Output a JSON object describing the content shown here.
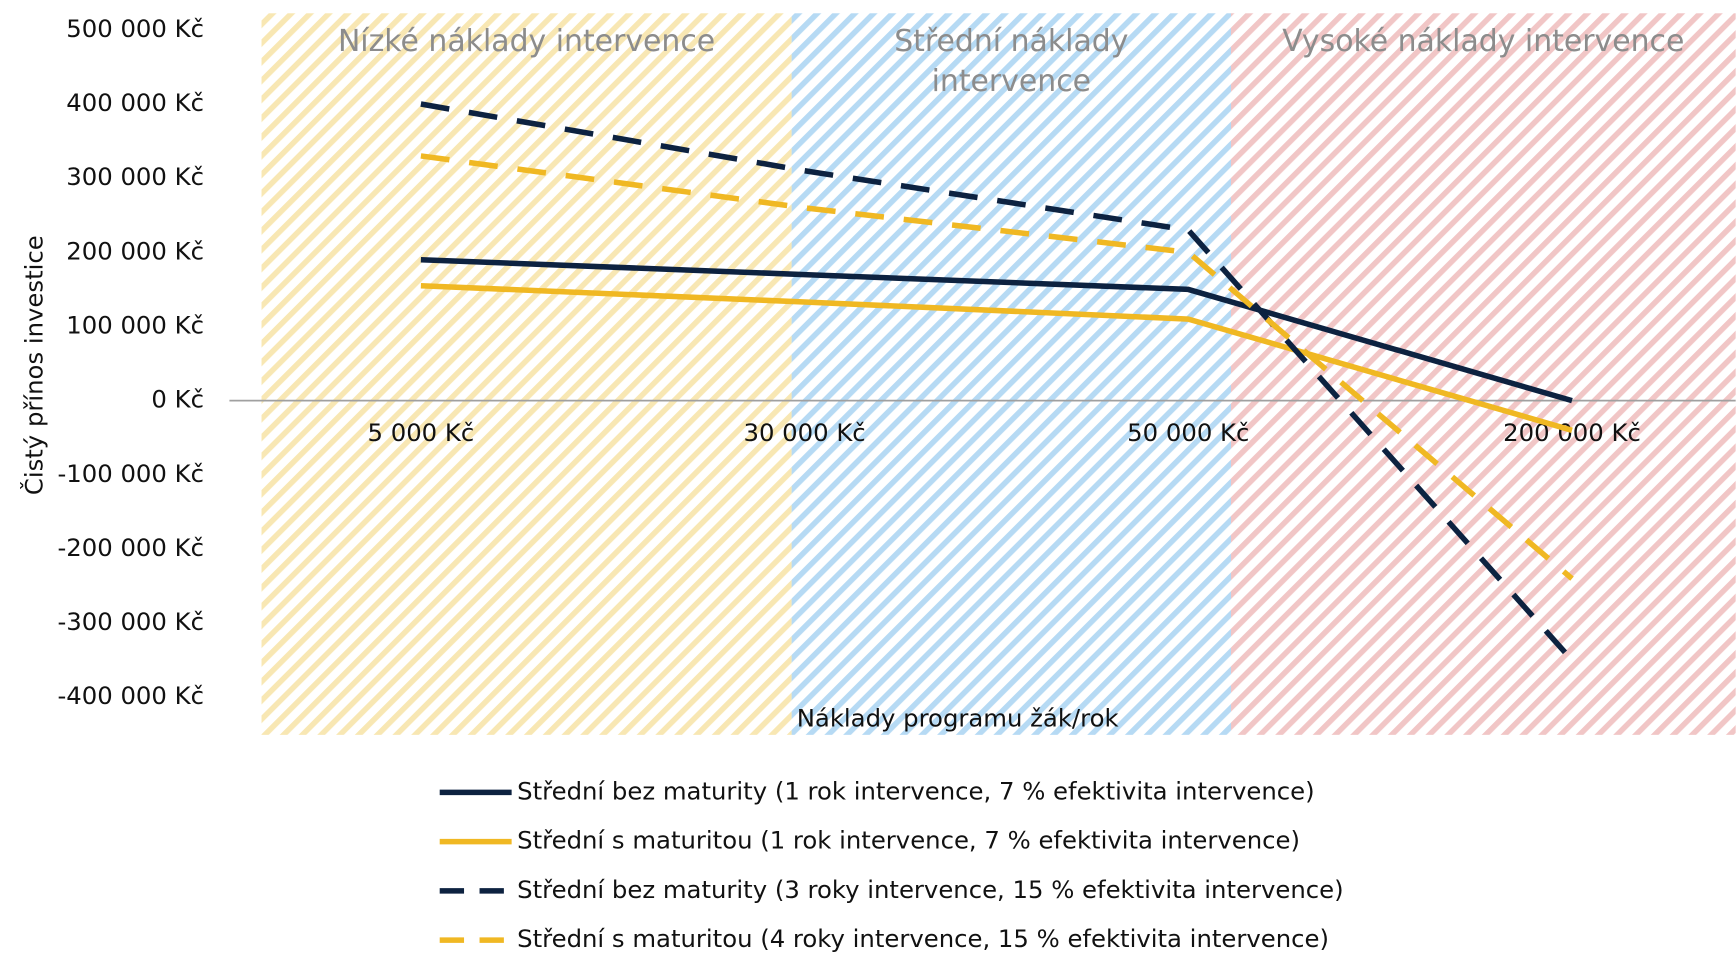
{
  "chart_data": {
    "type": "line",
    "y_label": "Čistý přínos investice",
    "x_label": "Náklady programu žák/rok",
    "categories": [
      "5 000 Kč",
      "30 000 Kč",
      "50 000 Kč",
      "200 000 Kč"
    ],
    "series": [
      {
        "name": "Střední bez maturity (1 rok intervence, 7 % efektivita intervence)",
        "color": "#0d2240",
        "dashed": false,
        "values": [
          190000,
          170000,
          150000,
          0
        ]
      },
      {
        "name": "Střední s maturitou (1 rok intervence, 7 % efektivita intervence)",
        "color": "#f0b823",
        "dashed": false,
        "values": [
          155000,
          133000,
          110000,
          -40000
        ]
      },
      {
        "name": "Střední bez maturity (3 roky intervence, 15 % efektivita intervence)",
        "color": "#0d2240",
        "dashed": true,
        "values": [
          400000,
          310000,
          230000,
          -350000
        ]
      },
      {
        "name": "Střední s maturitou (4 roky intervence, 15 % efektivita intervence)",
        "color": "#f0b823",
        "dashed": true,
        "values": [
          330000,
          260000,
          200000,
          -240000
        ]
      }
    ],
    "zones": [
      {
        "label": "Nízké náklady intervence",
        "color": "#f7e3a6"
      },
      {
        "label": "Střední náklady intervence",
        "color": "#a9d4f2"
      },
      {
        "label": "Vysoké náklady intervence",
        "color": "#efbcbc"
      }
    ],
    "ylim": [
      -400000,
      500000
    ],
    "yticks": [
      {
        "value": -400000,
        "label": "-400 000 Kč"
      },
      {
        "value": -300000,
        "label": "-300 000 Kč"
      },
      {
        "value": -200000,
        "label": "-200 000 Kč"
      },
      {
        "value": -100000,
        "label": "-100 000 Kč"
      },
      {
        "value": 0,
        "label": "0 Kč"
      },
      {
        "value": 100000,
        "label": "100 000 Kč"
      },
      {
        "value": 200000,
        "label": "200 000 Kč"
      },
      {
        "value": 300000,
        "label": "300 000 Kč"
      },
      {
        "value": 400000,
        "label": "400 000 Kč"
      },
      {
        "value": 500000,
        "label": "500 000 Kč"
      }
    ],
    "grid": false
  }
}
